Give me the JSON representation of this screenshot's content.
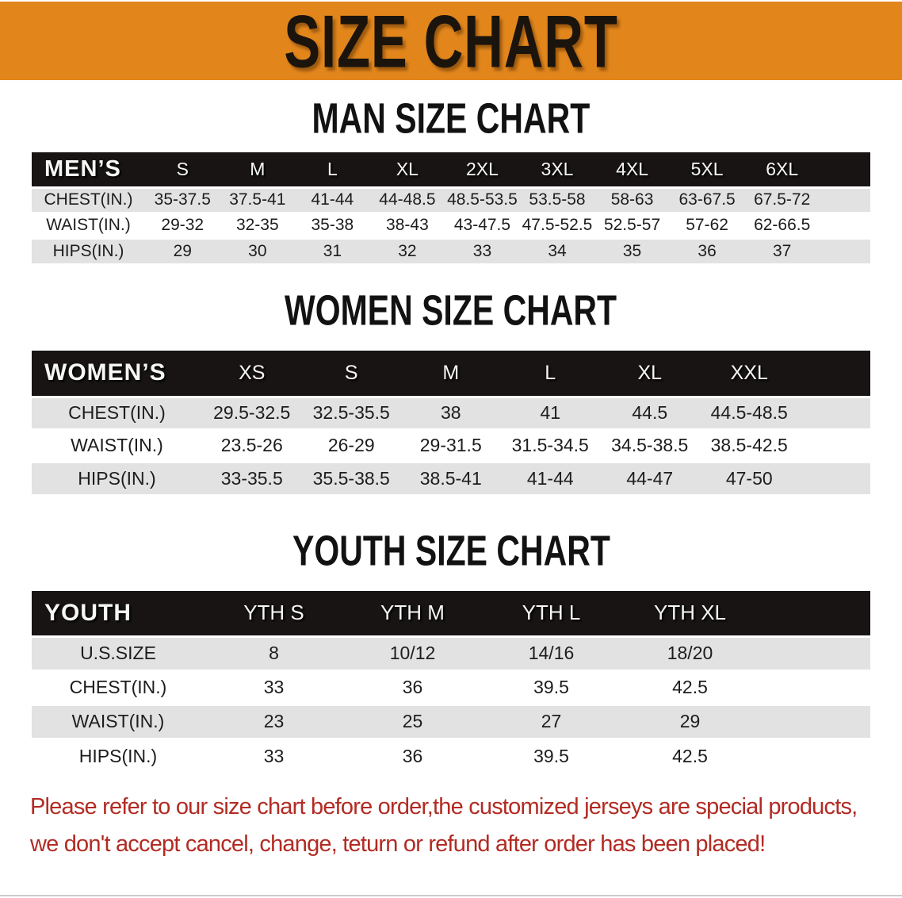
{
  "banner": {
    "title": "SIZE CHART",
    "bg_color": "#E2861C",
    "text_color": "#1B140C"
  },
  "sections": [
    {
      "heading": "MAN SIZE CHART",
      "group_label": "MEN’S",
      "columns": [
        "S",
        "M",
        "L",
        "XL",
        "2XL",
        "3XL",
        "4XL",
        "5XL",
        "6XL"
      ],
      "rows": [
        {
          "label": "CHEST(IN.)",
          "values": [
            "35-37.5",
            "37.5-41",
            "41-44",
            "44-48.5",
            "48.5-53.5",
            "53.5-58",
            "58-63",
            "63-67.5",
            "67.5-72"
          ]
        },
        {
          "label": "WAIST(IN.)",
          "values": [
            "29-32",
            "32-35",
            "35-38",
            "38-43",
            "43-47.5",
            "47.5-52.5",
            "52.5-57",
            "57-62",
            "62-66.5"
          ]
        },
        {
          "label": "HIPS(IN.)",
          "values": [
            "29",
            "30",
            "31",
            "32",
            "33",
            "34",
            "35",
            "36",
            "37"
          ]
        }
      ]
    },
    {
      "heading": "WOMEN SIZE CHART",
      "group_label": "WOMEN’S",
      "columns": [
        "XS",
        "S",
        "M",
        "L",
        "XL",
        "XXL"
      ],
      "rows": [
        {
          "label": "CHEST(IN.)",
          "values": [
            "29.5-32.5",
            "32.5-35.5",
            "38",
            "41",
            "44.5",
            "44.5-48.5"
          ]
        },
        {
          "label": "WAIST(IN.)",
          "values": [
            "23.5-26",
            "26-29",
            "29-31.5",
            "31.5-34.5",
            "34.5-38.5",
            "38.5-42.5"
          ]
        },
        {
          "label": "HIPS(IN.)",
          "values": [
            "33-35.5",
            "35.5-38.5",
            "38.5-41",
            "41-44",
            "44-47",
            "47-50"
          ]
        }
      ]
    },
    {
      "heading": "YOUTH SIZE CHART",
      "group_label": "YOUTH",
      "columns": [
        "YTH S",
        "YTH M",
        "YTH L",
        "YTH XL"
      ],
      "rows": [
        {
          "label": "U.S.SIZE",
          "values": [
            "8",
            "10/12",
            "14/16",
            "18/20"
          ]
        },
        {
          "label": "CHEST(IN.)",
          "values": [
            "33",
            "36",
            "39.5",
            "42.5"
          ]
        },
        {
          "label": "WAIST(IN.)",
          "values": [
            "23",
            "25",
            "27",
            "29"
          ]
        },
        {
          "label": "HIPS(IN.)",
          "values": [
            "33",
            "36",
            "39.5",
            "42.5"
          ]
        }
      ]
    }
  ],
  "footer": {
    "line1": "Please refer to our size chart before order,the customized jerseys are special products,",
    "line2": "we don't accept cancel, change, teturn or refund after order has been placed!",
    "text_color": "#B22B23"
  },
  "colors": {
    "header_band": "#171413",
    "stripe_gray": "#E2E2E2",
    "row_white": "#FFFFFF"
  }
}
